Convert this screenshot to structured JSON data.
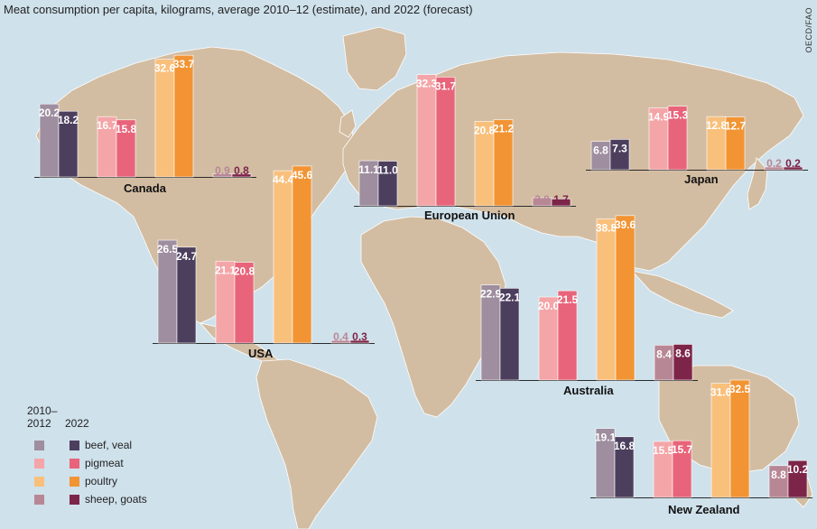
{
  "title": "Meat consumption per capita, kilograms, average 2010–12 (estimate), and 2022 (forecast)",
  "source": "OECD/FAO",
  "legend": {
    "period_old": "2010–\n2012",
    "period_new": "2022",
    "items": [
      {
        "label": "beef, veal",
        "old_color": "#9e8e9f",
        "new_color": "#4c3f5e"
      },
      {
        "label": "pigmeat",
        "old_color": "#f4a5a8",
        "new_color": "#e8647a"
      },
      {
        "label": "poultry",
        "old_color": "#f9c07c",
        "new_color": "#f29433"
      },
      {
        "label": "sheep, goats",
        "old_color": "#b88795",
        "new_color": "#7d2549"
      }
    ]
  },
  "colors": {
    "ocean": "#cfe1eb",
    "land": "#d3bda2",
    "border": "#ffffff"
  },
  "chart_data": [
    {
      "type": "bar",
      "region": "Canada",
      "categories": [
        "beef, veal",
        "pigmeat",
        "poultry",
        "sheep, goats"
      ],
      "series": [
        {
          "name": "2010–2012",
          "values": [
            20.2,
            16.7,
            32.6,
            0.9
          ]
        },
        {
          "name": "2022",
          "values": [
            18.2,
            15.8,
            33.7,
            0.8
          ]
        }
      ]
    },
    {
      "type": "bar",
      "region": "USA",
      "categories": [
        "beef, veal",
        "pigmeat",
        "poultry",
        "sheep, goats"
      ],
      "series": [
        {
          "name": "2010–2012",
          "values": [
            26.5,
            21.1,
            44.4,
            0.4
          ]
        },
        {
          "name": "2022",
          "values": [
            24.7,
            20.8,
            45.6,
            0.3
          ]
        }
      ]
    },
    {
      "type": "bar",
      "region": "European Union",
      "categories": [
        "beef, veal",
        "pigmeat",
        "poultry",
        "sheep, goats"
      ],
      "series": [
        {
          "name": "2010–2012",
          "values": [
            11.1,
            32.3,
            20.8,
            2.0
          ]
        },
        {
          "name": "2022",
          "values": [
            11.0,
            31.7,
            21.2,
            1.7
          ]
        }
      ]
    },
    {
      "type": "bar",
      "region": "Japan",
      "categories": [
        "beef, veal",
        "pigmeat",
        "poultry",
        "sheep, goats"
      ],
      "series": [
        {
          "name": "2010–2012",
          "values": [
            6.8,
            14.9,
            12.8,
            0.2
          ]
        },
        {
          "name": "2022",
          "values": [
            7.3,
            15.3,
            12.7,
            0.2
          ]
        }
      ]
    },
    {
      "type": "bar",
      "region": "Australia",
      "categories": [
        "beef, veal",
        "pigmeat",
        "poultry",
        "sheep, goats"
      ],
      "series": [
        {
          "name": "2010–2012",
          "values": [
            22.9,
            20.0,
            38.8,
            8.4
          ]
        },
        {
          "name": "2022",
          "values": [
            22.1,
            21.5,
            39.6,
            8.6
          ]
        }
      ]
    },
    {
      "type": "bar",
      "region": "New Zealand",
      "categories": [
        "beef, veal",
        "pigmeat",
        "poultry",
        "sheep, goats"
      ],
      "series": [
        {
          "name": "2010–2012",
          "values": [
            19.1,
            15.5,
            31.6,
            8.8
          ]
        },
        {
          "name": "2022",
          "values": [
            16.8,
            15.7,
            32.5,
            10.2
          ]
        }
      ]
    }
  ]
}
